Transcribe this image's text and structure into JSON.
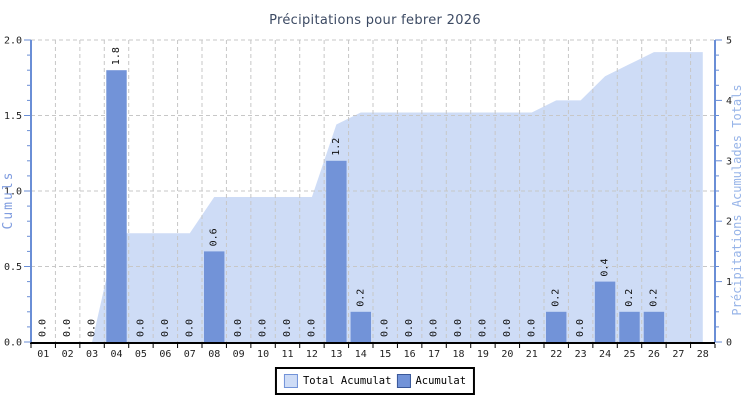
{
  "chart_data": {
    "type": "bar",
    "title": "Précipitations pour febrer 2026",
    "categories": [
      "01",
      "02",
      "03",
      "04",
      "05",
      "06",
      "07",
      "08",
      "09",
      "10",
      "11",
      "12",
      "13",
      "14",
      "15",
      "16",
      "17",
      "18",
      "19",
      "20",
      "21",
      "22",
      "23",
      "24",
      "25",
      "26",
      "27",
      "28"
    ],
    "series": [
      {
        "name": "Total Acumulat",
        "type": "area",
        "axis": "right",
        "values": [
          0,
          0,
          0,
          1.8,
          1.8,
          1.8,
          1.8,
          2.4,
          2.4,
          2.4,
          2.4,
          2.4,
          3.6,
          3.8,
          3.8,
          3.8,
          3.8,
          3.8,
          3.8,
          3.8,
          3.8,
          4.0,
          4.0,
          4.4,
          4.6,
          4.8,
          4.8,
          4.8
        ]
      },
      {
        "name": "Acumulat",
        "type": "bar",
        "axis": "left",
        "values": [
          0,
          0,
          0,
          1.8,
          0,
          0,
          0,
          0.6,
          0,
          0,
          0,
          0,
          1.2,
          0.2,
          0,
          0,
          0,
          0,
          0,
          0,
          0,
          0.2,
          0,
          0.4,
          0.2,
          0.2,
          null,
          null
        ]
      }
    ],
    "left_axis": {
      "label": "Cumuls",
      "min": 0,
      "max": 2,
      "major_step": 0.5,
      "minor_step": 0.1
    },
    "right_axis": {
      "label": "Précipitations Acumulades Totals",
      "min": 0,
      "max": 5,
      "major_step": 1,
      "minor_step": 0.25
    },
    "grid": true,
    "legend_position": "bottom",
    "bar_value_labels_rotated": true
  },
  "colors": {
    "bar_fill": "#7293d8",
    "bar_legend_border": "#3a5899",
    "area_fill": "#cedcf6",
    "area_legend_border": "#7293d8",
    "axis_line": "#6a8ed6",
    "x_axis_line": "#000000",
    "grid_line": "#c7c7c7",
    "title_text": "#3c4a63",
    "left_axis_title_text": "#7f9cdf",
    "right_axis_title_text": "#97b4e8",
    "tick_text": "#222222",
    "bar_value_text": "#111111"
  }
}
